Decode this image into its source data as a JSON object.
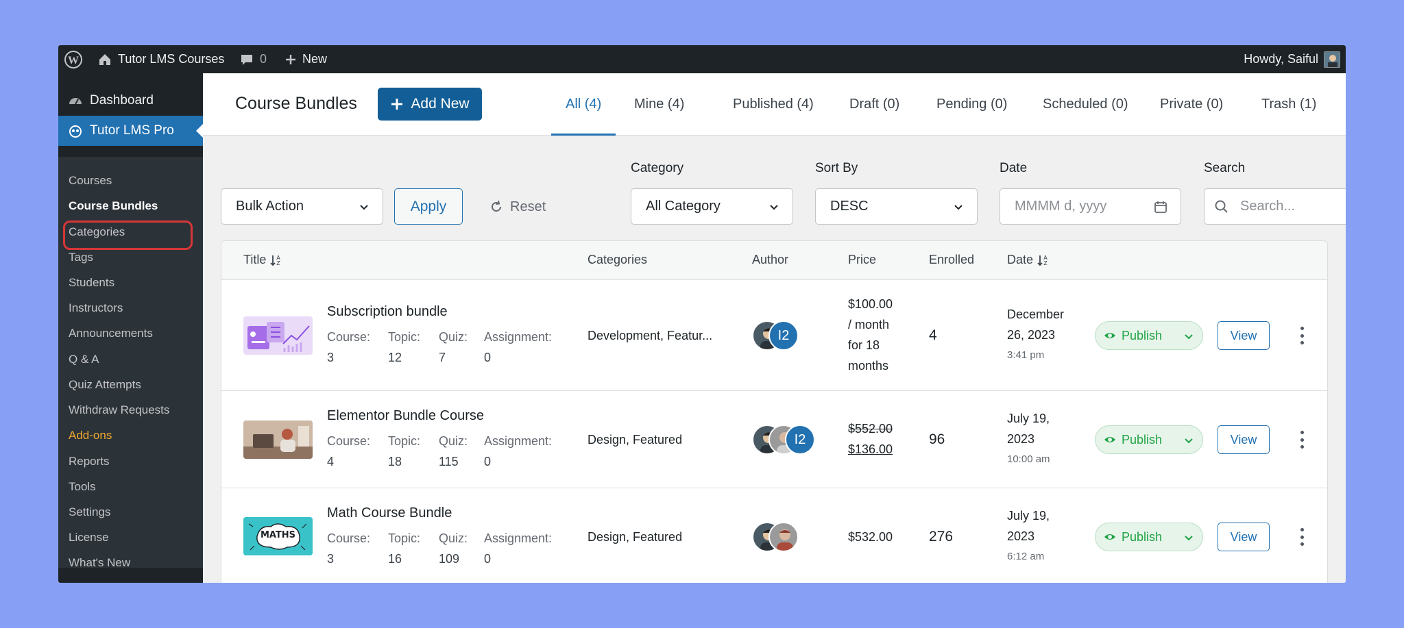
{
  "adminbar": {
    "site_name": "Tutor LMS Courses",
    "comments_count": "0",
    "new_label": "New",
    "howdy": "Howdy, Saiful"
  },
  "sidebar": {
    "dashboard": "Dashboard",
    "plugin": "Tutor LMS Pro",
    "items": [
      "Courses",
      "Course Bundles",
      "Categories",
      "Tags",
      "Students",
      "Instructors",
      "Announcements",
      "Q & A",
      "Quiz Attempts",
      "Withdraw Requests",
      "Add-ons",
      "Reports",
      "Tools",
      "Settings",
      "License",
      "What's New"
    ]
  },
  "header": {
    "title": "Course Bundles",
    "add_new": "Add New",
    "tabs": [
      "All (4)",
      "Mine (4)",
      "Published (4)",
      "Draft (0)",
      "Pending (0)",
      "Scheduled (0)",
      "Private (0)",
      "Trash (1)"
    ]
  },
  "filters": {
    "bulk_action": "Bulk Action",
    "apply": "Apply",
    "reset": "Reset",
    "category_label": "Category",
    "category_value": "All Category",
    "sort_label": "Sort By",
    "sort_value": "DESC",
    "date_label": "Date",
    "date_placeholder": "MMMM d, yyyy",
    "search_label": "Search",
    "search_placeholder": "Search..."
  },
  "table": {
    "headers": {
      "title": "Title",
      "categories": "Categories",
      "author": "Author",
      "price": "Price",
      "enrolled": "Enrolled",
      "date": "Date"
    },
    "meta_labels": {
      "course": "Course:",
      "topic": "Topic:",
      "quiz": "Quiz:",
      "assignment": "Assignment:"
    },
    "rows": [
      {
        "title": "Subscription bundle",
        "course": "3",
        "topic": "12",
        "quiz": "7",
        "assignment": "0",
        "categories": "Development, Featur...",
        "author_count": "I2",
        "price_lines": [
          "$100.00",
          "/ month",
          "for 18",
          "months"
        ],
        "enrolled": "4",
        "date_lines": [
          "December",
          "26, 2023"
        ],
        "time": "3:41 pm",
        "status": "Publish",
        "view": "View"
      },
      {
        "title": "Elementor Bundle Course",
        "course": "4",
        "topic": "18",
        "quiz": "115",
        "assignment": "0",
        "categories": "Design, Featured",
        "author_count": "I2",
        "price_old": "$552.00",
        "price_new": "$136.00",
        "enrolled": "96",
        "date_lines": [
          "July 19,",
          "2023"
        ],
        "time": "10:00 am",
        "status": "Publish",
        "view": "View"
      },
      {
        "title": "Math Course Bundle",
        "course": "3",
        "topic": "16",
        "quiz": "109",
        "assignment": "0",
        "categories": "Design, Featured",
        "price": "$532.00",
        "enrolled": "276",
        "date_lines": [
          "July 19,",
          "2023"
        ],
        "time": "6:12 am",
        "status": "Publish",
        "view": "View",
        "thumb_text": "MATHS"
      }
    ]
  },
  "colors": {
    "primary": "#2271b1",
    "admin_dark": "#1d2327",
    "publish_green": "#20a345",
    "highlight_red": "#d63638",
    "addons_orange": "#f0a830",
    "background": "#87a0f5"
  }
}
